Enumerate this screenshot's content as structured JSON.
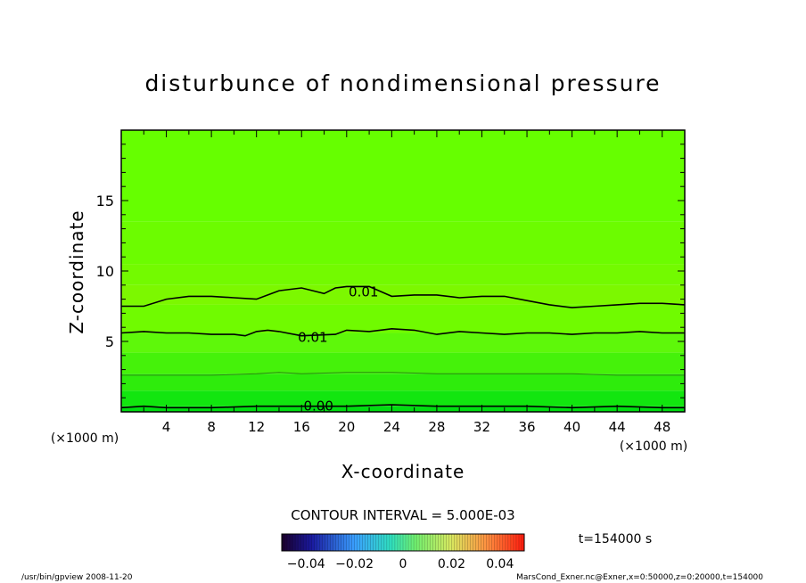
{
  "chart_data": {
    "type": "contour",
    "title": "disturbunce of nondimensional pressure",
    "xlabel": "X-coordinate",
    "ylabel": "Z-coordinate",
    "x_unit_left": "(×1000 m)",
    "x_unit_right": "(×1000 m)",
    "xlim": [
      0,
      50
    ],
    "ylim": [
      0,
      20
    ],
    "xticks": [
      "4",
      "8",
      "12",
      "16",
      "20",
      "24",
      "28",
      "32",
      "36",
      "40",
      "44",
      "48"
    ],
    "yticks": [
      "5",
      "10",
      "15"
    ],
    "contour_interval_text": "CONTOUR INTERVAL = 5.000E-03",
    "time_label": "t=154000 s",
    "colorbar_ticks": [
      "−0.04",
      "−0.02",
      "0",
      "0.02",
      "0.04"
    ],
    "colorbar_range": [
      -0.05,
      0.05
    ],
    "contour_lines": [
      {
        "label": "0.01",
        "label_x": 21.5,
        "label_z": 8.5,
        "points": [
          [
            0,
            7.5
          ],
          [
            2,
            7.5
          ],
          [
            4,
            8.0
          ],
          [
            6,
            8.2
          ],
          [
            8,
            8.2
          ],
          [
            10,
            8.1
          ],
          [
            12,
            8.0
          ],
          [
            13,
            8.3
          ],
          [
            14,
            8.6
          ],
          [
            16,
            8.8
          ],
          [
            17,
            8.6
          ],
          [
            18,
            8.4
          ],
          [
            19,
            8.8
          ],
          [
            20,
            8.9
          ],
          [
            22,
            8.9
          ],
          [
            24,
            8.2
          ],
          [
            26,
            8.3
          ],
          [
            28,
            8.3
          ],
          [
            30,
            8.1
          ],
          [
            32,
            8.2
          ],
          [
            34,
            8.2
          ],
          [
            36,
            7.9
          ],
          [
            38,
            7.6
          ],
          [
            40,
            7.4
          ],
          [
            42,
            7.5
          ],
          [
            44,
            7.6
          ],
          [
            46,
            7.7
          ],
          [
            48,
            7.7
          ],
          [
            50,
            7.6
          ]
        ]
      },
      {
        "label": "0.01",
        "label_x": 17.0,
        "label_z": 5.3,
        "points": [
          [
            0,
            5.6
          ],
          [
            2,
            5.7
          ],
          [
            4,
            5.6
          ],
          [
            6,
            5.6
          ],
          [
            8,
            5.5
          ],
          [
            10,
            5.5
          ],
          [
            11,
            5.4
          ],
          [
            12,
            5.7
          ],
          [
            13,
            5.8
          ],
          [
            14,
            5.7
          ],
          [
            16,
            5.4
          ],
          [
            19,
            5.5
          ],
          [
            20,
            5.8
          ],
          [
            22,
            5.7
          ],
          [
            24,
            5.9
          ],
          [
            26,
            5.8
          ],
          [
            28,
            5.5
          ],
          [
            30,
            5.7
          ],
          [
            32,
            5.6
          ],
          [
            34,
            5.5
          ],
          [
            36,
            5.6
          ],
          [
            38,
            5.6
          ],
          [
            40,
            5.5
          ],
          [
            42,
            5.6
          ],
          [
            44,
            5.6
          ],
          [
            46,
            5.7
          ],
          [
            48,
            5.6
          ],
          [
            50,
            5.6
          ]
        ]
      },
      {
        "label": "",
        "label_x": 0,
        "label_z": 0,
        "points": [
          [
            0,
            2.6
          ],
          [
            4,
            2.6
          ],
          [
            8,
            2.6
          ],
          [
            12,
            2.7
          ],
          [
            14,
            2.8
          ],
          [
            16,
            2.7
          ],
          [
            20,
            2.8
          ],
          [
            24,
            2.8
          ],
          [
            28,
            2.7
          ],
          [
            32,
            2.7
          ],
          [
            36,
            2.7
          ],
          [
            40,
            2.7
          ],
          [
            44,
            2.6
          ],
          [
            48,
            2.6
          ],
          [
            50,
            2.6
          ]
        ]
      },
      {
        "label": "0.00",
        "label_x": 17.5,
        "label_z": 0.4,
        "points": [
          [
            0,
            0.3
          ],
          [
            2,
            0.4
          ],
          [
            4,
            0.3
          ],
          [
            8,
            0.3
          ],
          [
            12,
            0.4
          ],
          [
            16,
            0.4
          ],
          [
            20,
            0.4
          ],
          [
            24,
            0.5
          ],
          [
            28,
            0.4
          ],
          [
            32,
            0.4
          ],
          [
            36,
            0.4
          ],
          [
            40,
            0.3
          ],
          [
            44,
            0.4
          ],
          [
            48,
            0.3
          ],
          [
            50,
            0.3
          ]
        ]
      }
    ],
    "fill_bands": [
      {
        "z_top": 20,
        "color": "#66ff00"
      },
      {
        "z_top": 13.5,
        "color": "#6cfc00"
      },
      {
        "z_top": 10.5,
        "color": "#73fa00"
      },
      {
        "z_top": 9.0,
        "color": "#7cf800"
      },
      {
        "z_top": 7.6,
        "color": "#70fb00"
      },
      {
        "z_top": 5.6,
        "color": "#5ef80a"
      },
      {
        "z_top": 4.2,
        "color": "#45f20a"
      },
      {
        "z_top": 2.7,
        "color": "#2eec0c"
      },
      {
        "z_top": 1.5,
        "color": "#12e60f"
      },
      {
        "z_top": 0.4,
        "color": "#00dd10"
      }
    ]
  },
  "footer": {
    "left": "/usr/bin/gpview  2008-11-20",
    "right": "MarsCond_Exner.nc@Exner,x=0:50000,z=0:20000,t=154000"
  }
}
